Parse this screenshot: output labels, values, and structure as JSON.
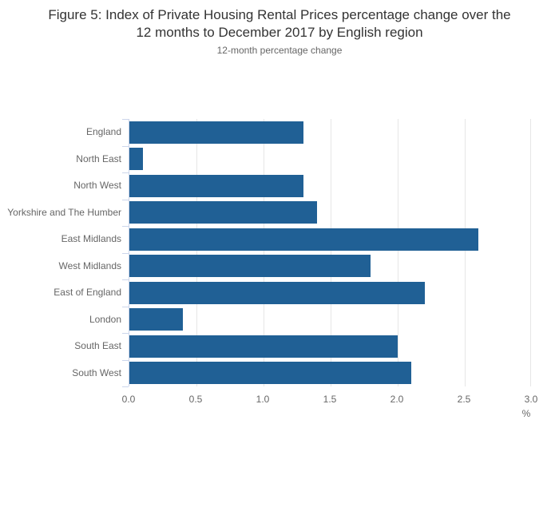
{
  "header": {
    "title_lines": [
      "Figure 5: Index of Private Housing Rental Prices percentage change over the",
      "12 months to December 2017 by English region"
    ],
    "subtitle": "12-month percentage change"
  },
  "chart_data": {
    "type": "bar",
    "orientation": "horizontal",
    "title": "Figure 5: Index of Private Housing Rental Prices percentage change over the 12 months to December 2017 by English region",
    "subtitle": "12-month percentage change",
    "categories": [
      "England",
      "North East",
      "North West",
      "Yorkshire and The Humber",
      "East Midlands",
      "West Midlands",
      "East of England",
      "London",
      "South East",
      "South West"
    ],
    "values": [
      1.3,
      0.1,
      1.3,
      1.4,
      2.6,
      1.8,
      2.2,
      0.4,
      2.0,
      2.1
    ],
    "xlabel": "%",
    "ylabel": "",
    "xlim": [
      0.0,
      3.0
    ],
    "x_ticks": [
      "0.0",
      "0.5",
      "1.0",
      "1.5",
      "2.0",
      "2.5",
      "3.0"
    ],
    "grid": true,
    "legend": false,
    "colors": {
      "bar": "#206095",
      "gridline": "#e6e6e6",
      "axis_line": "#ccd6eb",
      "label_text": "#666666",
      "title_text": "#333333"
    }
  }
}
